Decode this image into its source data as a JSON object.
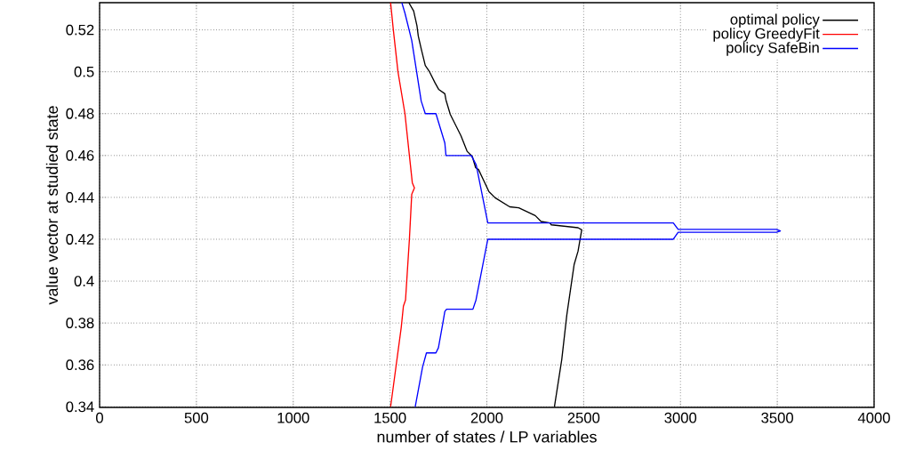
{
  "chart_data": {
    "type": "line",
    "xlabel": "number of states / LP variables",
    "ylabel": "value vector at studied state",
    "xlim": [
      0,
      4000
    ],
    "ylim": [
      0.3397,
      0.533
    ],
    "xticks": [
      0,
      500,
      1000,
      1500,
      2000,
      2500,
      3000,
      3500,
      4000
    ],
    "yticks": [
      0.34,
      0.36,
      0.38,
      0.4,
      0.42,
      0.44,
      0.46,
      0.48,
      0.5,
      0.52
    ],
    "grid": true,
    "legend": "top right",
    "marker": "none",
    "line_style": "solid",
    "series": [
      {
        "name": "optimal policy",
        "color": "#000000",
        "x": [
          1597,
          1622,
          1639,
          1646,
          1661,
          1682,
          1704,
          1733,
          1751,
          1783,
          1789,
          1811,
          1820,
          1866,
          1898,
          1925,
          1942,
          1957,
          1985,
          2011,
          2043,
          2118,
          2165,
          2250,
          2280,
          2326,
          2333,
          2471,
          2490,
          2471,
          2451,
          2413,
          2387,
          2349
        ],
        "values": [
          0.533,
          0.529,
          0.522,
          0.517,
          0.511,
          0.503,
          0.5,
          0.4946,
          0.4916,
          0.4895,
          0.4865,
          0.4797,
          0.478,
          0.4695,
          0.462,
          0.4595,
          0.4542,
          0.4533,
          0.4478,
          0.4427,
          0.4398,
          0.4355,
          0.435,
          0.4313,
          0.4285,
          0.4278,
          0.4269,
          0.4255,
          0.4245,
          0.4143,
          0.408,
          0.3838,
          0.3626,
          0.34
        ]
      },
      {
        "name": "policy GreedyFit",
        "color": "#ff0000",
        "x": [
          1503,
          1517,
          1541,
          1577,
          1600,
          1615,
          1626,
          1612,
          1600,
          1580,
          1569,
          1558,
          1503
        ],
        "values": [
          0.533,
          0.52,
          0.5,
          0.48,
          0.46,
          0.447,
          0.4445,
          0.4414,
          0.42,
          0.391,
          0.388,
          0.378,
          0.34
        ]
      },
      {
        "name": "policy SafeBin",
        "color": "#0000ff",
        "x": [
          1561,
          1577,
          1612,
          1661,
          1682,
          1737,
          1783,
          1789,
          1920,
          1945,
          2005,
          2963,
          2988,
          3496,
          3516,
          3496,
          2988,
          2963,
          2005,
          1944,
          1928,
          1792,
          1783,
          1772,
          1750,
          1737,
          1688,
          1668,
          1630
        ],
        "values": [
          0.533,
          0.528,
          0.515,
          0.486,
          0.48,
          0.48,
          0.466,
          0.46,
          0.46,
          0.4555,
          0.4278,
          0.4278,
          0.4247,
          0.4247,
          0.424,
          0.4233,
          0.4233,
          0.42,
          0.42,
          0.391,
          0.3866,
          0.3866,
          0.3855,
          0.3796,
          0.3682,
          0.3657,
          0.3657,
          0.359,
          0.34
        ]
      }
    ]
  }
}
